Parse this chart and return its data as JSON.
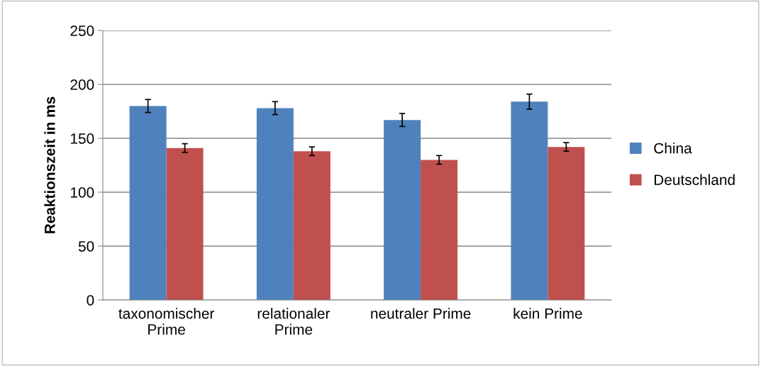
{
  "chart_data": {
    "type": "bar",
    "ylabel": "Reaktionszeit in ms",
    "categories": [
      "taxonomischer\nPrime",
      "relationaler\nPrime",
      "neutraler Prime",
      "kein Prime"
    ],
    "series": [
      {
        "name": "China",
        "color": "#4f81bd",
        "values": [
          180,
          178,
          167,
          184
        ],
        "errors": [
          6,
          6,
          6,
          7
        ]
      },
      {
        "name": "Deutschland",
        "color": "#c0504d",
        "values": [
          141,
          138,
          130,
          142
        ],
        "errors": [
          4,
          4,
          4,
          4
        ]
      }
    ],
    "ylim": [
      0,
      250
    ],
    "yticks": [
      0,
      50,
      100,
      150,
      200,
      250
    ],
    "grid": "y",
    "legend": "right"
  }
}
